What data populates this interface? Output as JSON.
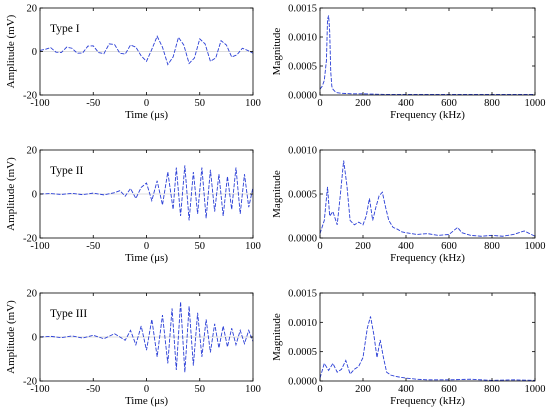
{
  "figure": {
    "series_color": "#2b3fd6",
    "axis_color": "#000000"
  },
  "chart_data": [
    {
      "id": "time-1",
      "type": "line",
      "annotation": "Type I",
      "xlabel": "Time (μs)",
      "ylabel": "Amplitude (mV)",
      "xlim": [
        -100,
        100
      ],
      "ylim": [
        -20,
        20
      ],
      "xticks": [
        -100,
        -50,
        0,
        50,
        100
      ],
      "yticks": [
        -20,
        0,
        20
      ],
      "x": [
        -100,
        -95,
        -90,
        -85,
        -80,
        -75,
        -70,
        -65,
        -60,
        -55,
        -50,
        -45,
        -40,
        -35,
        -30,
        -25,
        -20,
        -15,
        -10,
        -5,
        0,
        5,
        10,
        15,
        20,
        25,
        30,
        35,
        40,
        45,
        50,
        55,
        60,
        65,
        70,
        75,
        80,
        85,
        90,
        95,
        100
      ],
      "y": [
        0.5,
        1.0,
        1.8,
        -0.3,
        -0.5,
        2.0,
        1.5,
        -0.8,
        -0.7,
        2.5,
        2.6,
        -0.5,
        -1.0,
        3.5,
        3.2,
        -0.8,
        -1.2,
        3.0,
        2.0,
        -2.0,
        -4.5,
        1.0,
        7.0,
        2.0,
        -6.0,
        -2.5,
        6.5,
        3.0,
        -5.5,
        -3.0,
        5.8,
        3.5,
        -4.5,
        -3.0,
        5.0,
        3.0,
        -2.5,
        -1.5,
        1.5,
        0.5,
        -0.8
      ]
    },
    {
      "id": "freq-1",
      "type": "line",
      "xlabel": "Frequency (kHz)",
      "ylabel": "Magnitude",
      "xlim": [
        0,
        1000
      ],
      "ylim": [
        0,
        0.0015
      ],
      "xticks": [
        0,
        200,
        400,
        600,
        800,
        1000
      ],
      "yticks": [
        0,
        0.0005,
        0.001,
        0.0015
      ],
      "ytick_labels": [
        "0.0000",
        "0.0005",
        "0.0010",
        "0.0015"
      ],
      "x": [
        0,
        10,
        20,
        30,
        35,
        40,
        45,
        50,
        55,
        60,
        70,
        80,
        100,
        150,
        200,
        300,
        400,
        500,
        600,
        700,
        800,
        900,
        1000
      ],
      "y": [
        0.0001,
        0.00015,
        0.00025,
        0.0006,
        0.0013,
        0.00137,
        0.0011,
        0.0004,
        0.00015,
        0.0001,
        6e-05,
        4e-05,
        3e-05,
        2e-05,
        2e-05,
        1e-05,
        1e-05,
        1e-05,
        1e-05,
        1e-05,
        1e-05,
        1e-05,
        1e-05
      ]
    },
    {
      "id": "time-2",
      "type": "line",
      "annotation": "Type II",
      "xlabel": "Time (μs)",
      "ylabel": "Amplitude (mV)",
      "xlim": [
        -100,
        100
      ],
      "ylim": [
        -20,
        20
      ],
      "xticks": [
        -100,
        -50,
        0,
        50,
        100
      ],
      "yticks": [
        -20,
        0,
        20
      ],
      "x": [
        -100,
        -90,
        -80,
        -70,
        -60,
        -50,
        -40,
        -30,
        -25,
        -20,
        -15,
        -10,
        -5,
        0,
        5,
        10,
        15,
        20,
        25,
        28,
        32,
        36,
        40,
        44,
        48,
        52,
        56,
        60,
        64,
        68,
        72,
        76,
        80,
        84,
        88,
        92,
        96,
        100
      ],
      "y": [
        0,
        0.2,
        -0.2,
        0.3,
        -0.3,
        0.4,
        -0.4,
        0.6,
        1.5,
        -1.0,
        2.5,
        -2.0,
        3.0,
        5.0,
        -3.0,
        6.0,
        -5.0,
        10.0,
        -7.0,
        12.0,
        -10.0,
        13.0,
        -12.0,
        10.0,
        -9.0,
        12.0,
        -11.0,
        11.0,
        -8.0,
        9.0,
        -10.0,
        8.0,
        -7.0,
        12.0,
        -9.0,
        9.0,
        -6.0,
        3.0
      ]
    },
    {
      "id": "freq-2",
      "type": "line",
      "xlabel": "Frequency (kHz)",
      "ylabel": "Magnitude",
      "xlim": [
        0,
        1000
      ],
      "ylim": [
        0,
        0.001
      ],
      "xticks": [
        0,
        200,
        400,
        600,
        800,
        1000
      ],
      "yticks": [
        0,
        0.0005,
        0.001
      ],
      "ytick_labels": [
        "0.0000",
        "0.0005",
        "0.0010"
      ],
      "x": [
        0,
        20,
        35,
        45,
        60,
        80,
        95,
        110,
        125,
        140,
        160,
        180,
        200,
        215,
        230,
        245,
        260,
        275,
        290,
        305,
        320,
        340,
        360,
        380,
        400,
        450,
        500,
        550,
        600,
        640,
        660,
        700,
        750,
        800,
        850,
        900,
        950,
        1000
      ],
      "y": [
        5e-05,
        0.0002,
        0.00058,
        0.00025,
        0.0003,
        0.00015,
        0.0005,
        0.00088,
        0.0006,
        0.0002,
        0.00015,
        0.00018,
        0.00015,
        0.00025,
        0.00045,
        0.0002,
        0.00035,
        0.00048,
        0.00052,
        0.00035,
        0.0002,
        0.00012,
        0.0001,
        7e-05,
        6e-05,
        4e-05,
        5e-05,
        3e-05,
        4e-05,
        0.00012,
        6e-05,
        3e-05,
        2e-05,
        3e-05,
        2e-05,
        4e-05,
        8e-05,
        2e-05
      ]
    },
    {
      "id": "time-3",
      "type": "line",
      "annotation": "Type III",
      "xlabel": "Time (μs)",
      "ylabel": "Amplitude (mV)",
      "xlim": [
        -100,
        100
      ],
      "ylim": [
        -20,
        20
      ],
      "xticks": [
        -100,
        -50,
        0,
        50,
        100
      ],
      "yticks": [
        -20,
        0,
        20
      ],
      "x": [
        -100,
        -90,
        -80,
        -70,
        -60,
        -50,
        -40,
        -30,
        -20,
        -15,
        -10,
        -5,
        0,
        5,
        10,
        15,
        20,
        24,
        28,
        32,
        36,
        40,
        44,
        48,
        52,
        56,
        60,
        64,
        68,
        72,
        76,
        80,
        84,
        88,
        92,
        96,
        100
      ],
      "y": [
        0,
        0.3,
        -0.3,
        0.5,
        -0.5,
        0.8,
        -0.8,
        1.5,
        -1.5,
        3.0,
        -3.5,
        5.0,
        -6.0,
        8.0,
        -9.0,
        10.0,
        -12.0,
        13.0,
        -15.0,
        16.0,
        -16.0,
        14.0,
        -13.0,
        11.0,
        -9.0,
        8.0,
        -7.0,
        6.0,
        -5.0,
        5.0,
        -4.5,
        4.0,
        -3.5,
        3.0,
        -3.0,
        3.0,
        -2.0
      ]
    },
    {
      "id": "freq-3",
      "type": "line",
      "xlabel": "Frequency (kHz)",
      "ylabel": "Magnitude",
      "xlim": [
        0,
        1000
      ],
      "ylim": [
        0,
        0.0015
      ],
      "xticks": [
        0,
        200,
        400,
        600,
        800,
        1000
      ],
      "yticks": [
        0,
        0.0005,
        0.001,
        0.0015
      ],
      "ytick_labels": [
        "0.0000",
        "0.0005",
        "0.0010",
        "0.0015"
      ],
      "x": [
        0,
        20,
        40,
        60,
        80,
        100,
        120,
        140,
        160,
        180,
        200,
        220,
        235,
        250,
        265,
        280,
        295,
        310,
        330,
        350,
        380,
        400,
        450,
        500,
        600,
        700,
        800,
        900,
        1000
      ],
      "y": [
        5e-05,
        0.0003,
        0.00018,
        0.0003,
        0.00015,
        0.0002,
        0.00035,
        0.00012,
        0.0002,
        0.00025,
        0.0004,
        0.0009,
        0.0011,
        0.0008,
        0.0004,
        0.0007,
        0.0004,
        0.00015,
        0.0001,
        8e-05,
        6e-05,
        5e-05,
        3e-05,
        2e-05,
        2e-05,
        3e-05,
        1e-05,
        2e-05,
        1e-05
      ]
    }
  ]
}
